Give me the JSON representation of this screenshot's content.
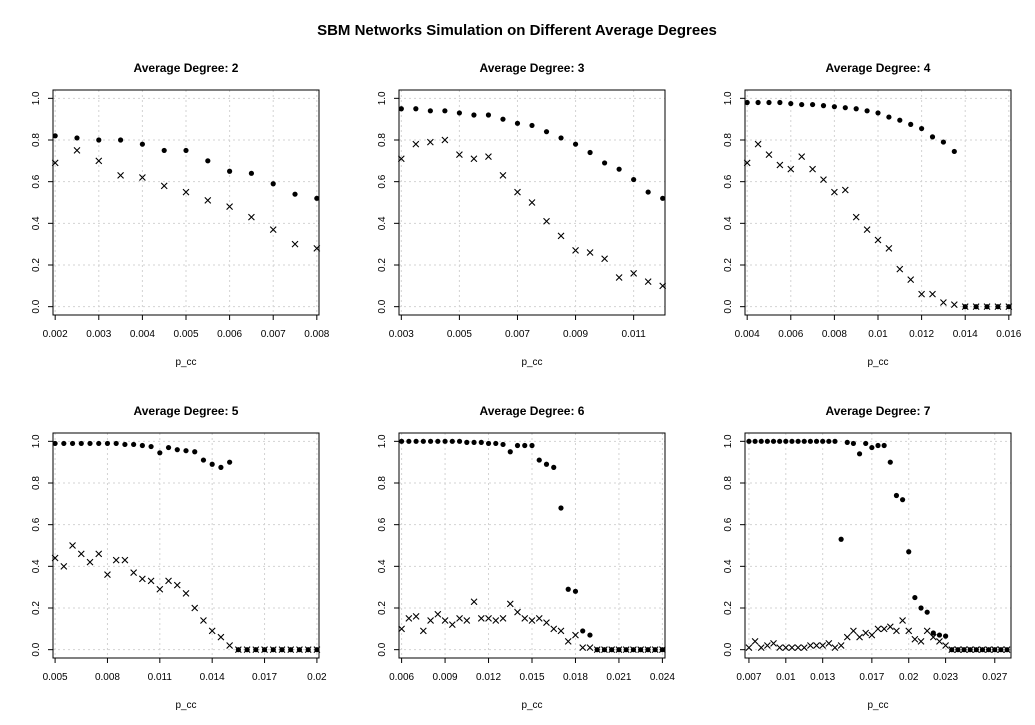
{
  "figure_title": "SBM Networks Simulation on Different Average Degrees",
  "chart_data": [
    {
      "type": "scatter",
      "title": "Average Degree:  2",
      "xlabel": "p_cc",
      "xlim": [
        0.00195,
        0.00805
      ],
      "ylim": [
        0,
        1
      ],
      "xticks": [
        0.002,
        0.003,
        0.004,
        0.005,
        0.006,
        0.007,
        0.008
      ],
      "xtick_labels": [
        "0.002",
        "0.003",
        "0.004",
        "0.005",
        "0.006",
        "0.007",
        "0.008"
      ],
      "yticks": [
        0,
        0.2,
        0.4,
        0.6,
        0.8,
        1.0
      ],
      "ytick_labels": [
        "0.0",
        "0.2",
        "0.4",
        "0.6",
        "0.8",
        "1.0"
      ],
      "series": [
        {
          "marker": "dot",
          "x": [
            0.002,
            0.0025,
            0.003,
            0.0035,
            0.004,
            0.0045,
            0.005,
            0.0055,
            0.006,
            0.0065,
            0.007,
            0.0075,
            0.008
          ],
          "y": [
            0.82,
            0.81,
            0.8,
            0.8,
            0.78,
            0.75,
            0.75,
            0.7,
            0.65,
            0.64,
            0.59,
            0.54,
            0.52
          ]
        },
        {
          "marker": "x",
          "x": [
            0.002,
            0.0025,
            0.003,
            0.0035,
            0.004,
            0.0045,
            0.005,
            0.0055,
            0.006,
            0.0065,
            0.007,
            0.0075,
            0.008
          ],
          "y": [
            0.69,
            0.75,
            0.7,
            0.63,
            0.62,
            0.58,
            0.55,
            0.51,
            0.48,
            0.43,
            0.37,
            0.3,
            0.28
          ]
        }
      ]
    },
    {
      "type": "scatter",
      "title": "Average Degree:  3",
      "xlabel": "p_cc",
      "xlim": [
        0.00292,
        0.01208
      ],
      "ylim": [
        0,
        1
      ],
      "xticks": [
        0.003,
        0.005,
        0.007,
        0.009,
        0.011
      ],
      "xtick_labels": [
        "0.003",
        "0.005",
        "0.007",
        "0.009",
        "0.011"
      ],
      "yticks": [
        0,
        0.2,
        0.4,
        0.6,
        0.8,
        1.0
      ],
      "ytick_labels": [
        "0.0",
        "0.2",
        "0.4",
        "0.6",
        "0.8",
        "1.0"
      ],
      "series": [
        {
          "marker": "dot",
          "x": [
            0.003,
            0.0035,
            0.004,
            0.0045,
            0.005,
            0.0055,
            0.006,
            0.0065,
            0.007,
            0.0075,
            0.008,
            0.0085,
            0.009,
            0.0095,
            0.01,
            0.0105,
            0.011,
            0.0115,
            0.012
          ],
          "y": [
            0.95,
            0.95,
            0.94,
            0.94,
            0.93,
            0.92,
            0.92,
            0.9,
            0.88,
            0.87,
            0.84,
            0.81,
            0.78,
            0.74,
            0.69,
            0.66,
            0.61,
            0.55,
            0.52
          ]
        },
        {
          "marker": "x",
          "x": [
            0.003,
            0.0035,
            0.004,
            0.0045,
            0.005,
            0.0055,
            0.006,
            0.0065,
            0.007,
            0.0075,
            0.008,
            0.0085,
            0.009,
            0.0095,
            0.01,
            0.0105,
            0.011,
            0.0115,
            0.012
          ],
          "y": [
            0.71,
            0.78,
            0.79,
            0.8,
            0.73,
            0.71,
            0.72,
            0.63,
            0.55,
            0.5,
            0.41,
            0.34,
            0.27,
            0.26,
            0.23,
            0.14,
            0.16,
            0.12,
            0.1
          ]
        }
      ]
    },
    {
      "type": "scatter",
      "title": "Average Degree:  4",
      "xlabel": "p_cc",
      "xlim": [
        0.0039,
        0.0161
      ],
      "ylim": [
        0,
        1
      ],
      "xticks": [
        0.004,
        0.006,
        0.008,
        0.01,
        0.012,
        0.014,
        0.016
      ],
      "xtick_labels": [
        "0.004",
        "0.006",
        "0.008",
        "0.01",
        "0.012",
        "0.014",
        "0.016"
      ],
      "yticks": [
        0,
        0.2,
        0.4,
        0.6,
        0.8,
        1.0
      ],
      "ytick_labels": [
        "0.0",
        "0.2",
        "0.4",
        "0.6",
        "0.8",
        "1.0"
      ],
      "series": [
        {
          "marker": "dot",
          "x": [
            0.004,
            0.0045,
            0.005,
            0.0055,
            0.006,
            0.0065,
            0.007,
            0.0075,
            0.008,
            0.0085,
            0.009,
            0.0095,
            0.01,
            0.0105,
            0.011,
            0.0115,
            0.012,
            0.0125,
            0.013,
            0.0135,
            0.014,
            0.0145,
            0.015,
            0.0155,
            0.016
          ],
          "y": [
            0.98,
            0.98,
            0.98,
            0.98,
            0.975,
            0.97,
            0.97,
            0.965,
            0.96,
            0.955,
            0.95,
            0.94,
            0.93,
            0.91,
            0.895,
            0.875,
            0.855,
            0.815,
            0.79,
            0.745,
            0,
            0,
            0,
            0,
            0
          ]
        },
        {
          "marker": "x",
          "x": [
            0.004,
            0.0045,
            0.005,
            0.0055,
            0.006,
            0.0065,
            0.007,
            0.0075,
            0.008,
            0.0085,
            0.009,
            0.0095,
            0.01,
            0.0105,
            0.011,
            0.0115,
            0.012,
            0.0125,
            0.013,
            0.0135,
            0.014,
            0.0145,
            0.015,
            0.0155,
            0.016
          ],
          "y": [
            0.69,
            0.78,
            0.73,
            0.68,
            0.66,
            0.72,
            0.66,
            0.61,
            0.55,
            0.56,
            0.43,
            0.37,
            0.32,
            0.28,
            0.18,
            0.13,
            0.06,
            0.06,
            0.02,
            0.01,
            0,
            0,
            0,
            0,
            0
          ]
        }
      ]
    },
    {
      "type": "scatter",
      "title": "Average Degree:  5",
      "xlabel": "p_cc",
      "xlim": [
        0.00488,
        0.02012
      ],
      "ylim": [
        0,
        1
      ],
      "xticks": [
        0.005,
        0.008,
        0.011,
        0.014,
        0.017,
        0.02
      ],
      "xtick_labels": [
        "0.005",
        "0.008",
        "0.011",
        "0.014",
        "0.017",
        "0.02"
      ],
      "yticks": [
        0,
        0.2,
        0.4,
        0.6,
        0.8,
        1.0
      ],
      "ytick_labels": [
        "0.0",
        "0.2",
        "0.4",
        "0.6",
        "0.8",
        "1.0"
      ],
      "series": [
        {
          "marker": "dot",
          "x": [
            0.005,
            0.0055,
            0.006,
            0.0065,
            0.007,
            0.0075,
            0.008,
            0.0085,
            0.009,
            0.0095,
            0.01,
            0.0105,
            0.011,
            0.0115,
            0.012,
            0.0125,
            0.013,
            0.0135,
            0.014,
            0.0145,
            0.015,
            0.0155,
            0.016,
            0.0165,
            0.017,
            0.0175,
            0.018,
            0.0185,
            0.019,
            0.0195,
            0.02
          ],
          "y": [
            0.99,
            0.99,
            0.99,
            0.99,
            0.99,
            0.99,
            0.99,
            0.99,
            0.985,
            0.985,
            0.98,
            0.975,
            0.945,
            0.97,
            0.96,
            0.955,
            0.95,
            0.91,
            0.89,
            0.875,
            0.9,
            0,
            0,
            0,
            0,
            0,
            0,
            0,
            0,
            0,
            0
          ]
        },
        {
          "marker": "x",
          "x": [
            0.005,
            0.0055,
            0.006,
            0.0065,
            0.007,
            0.0075,
            0.008,
            0.0085,
            0.009,
            0.0095,
            0.01,
            0.0105,
            0.011,
            0.0115,
            0.012,
            0.0125,
            0.013,
            0.0135,
            0.014,
            0.0145,
            0.015,
            0.0155,
            0.016,
            0.0165,
            0.017,
            0.0175,
            0.018,
            0.0185,
            0.019,
            0.0195,
            0.02
          ],
          "y": [
            0.44,
            0.4,
            0.5,
            0.46,
            0.42,
            0.46,
            0.36,
            0.43,
            0.43,
            0.37,
            0.34,
            0.33,
            0.29,
            0.33,
            0.31,
            0.27,
            0.2,
            0.14,
            0.09,
            0.06,
            0.02,
            0,
            0,
            0,
            0,
            0,
            0,
            0,
            0,
            0,
            0
          ]
        }
      ]
    },
    {
      "type": "scatter",
      "title": "Average Degree:  6",
      "xlabel": "p_cc",
      "xlim": [
        0.00582,
        0.02418
      ],
      "ylim": [
        0,
        1
      ],
      "xticks": [
        0.006,
        0.009,
        0.012,
        0.015,
        0.018,
        0.021,
        0.024
      ],
      "xtick_labels": [
        "0.006",
        "0.009",
        "0.012",
        "0.015",
        "0.018",
        "0.021",
        "0.024"
      ],
      "yticks": [
        0,
        0.2,
        0.4,
        0.6,
        0.8,
        1.0
      ],
      "ytick_labels": [
        "0.0",
        "0.2",
        "0.4",
        "0.6",
        "0.8",
        "1.0"
      ],
      "series": [
        {
          "marker": "dot",
          "x": [
            0.006,
            0.0065,
            0.007,
            0.0075,
            0.008,
            0.0085,
            0.009,
            0.0095,
            0.01,
            0.0105,
            0.011,
            0.0115,
            0.012,
            0.0125,
            0.013,
            0.0135,
            0.014,
            0.0145,
            0.015,
            0.0155,
            0.016,
            0.0165,
            0.017,
            0.0175,
            0.018,
            0.0185,
            0.019,
            0.0195,
            0.02,
            0.0205,
            0.021,
            0.0215,
            0.022,
            0.0225,
            0.023,
            0.0235,
            0.024
          ],
          "y": [
            1.0,
            1.0,
            1.0,
            1.0,
            1.0,
            1.0,
            1.0,
            1.0,
            1.0,
            0.995,
            0.995,
            0.995,
            0.99,
            0.99,
            0.985,
            0.95,
            0.98,
            0.98,
            0.98,
            0.91,
            0.89,
            0.875,
            0.68,
            0.29,
            0.28,
            0.09,
            0.07,
            0,
            0,
            0,
            0,
            0,
            0,
            0,
            0,
            0,
            0
          ]
        },
        {
          "marker": "x",
          "x": [
            0.006,
            0.0065,
            0.007,
            0.0075,
            0.008,
            0.0085,
            0.009,
            0.0095,
            0.01,
            0.0105,
            0.011,
            0.0115,
            0.012,
            0.0125,
            0.013,
            0.0135,
            0.014,
            0.0145,
            0.015,
            0.0155,
            0.016,
            0.0165,
            0.017,
            0.0175,
            0.018,
            0.0185,
            0.019,
            0.0195,
            0.02,
            0.0205,
            0.021,
            0.0215,
            0.022,
            0.0225,
            0.023,
            0.0235,
            0.024
          ],
          "y": [
            0.1,
            0.15,
            0.16,
            0.09,
            0.14,
            0.17,
            0.14,
            0.12,
            0.15,
            0.14,
            0.23,
            0.15,
            0.15,
            0.14,
            0.15,
            0.22,
            0.18,
            0.15,
            0.14,
            0.15,
            0.13,
            0.1,
            0.09,
            0.04,
            0.07,
            0.01,
            0.01,
            0,
            0,
            0,
            0,
            0,
            0,
            0,
            0,
            0,
            0
          ]
        }
      ]
    },
    {
      "type": "scatter",
      "title": "Average Degree:  7",
      "xlabel": "p_cc",
      "xlim": [
        0.00668,
        0.02832
      ],
      "ylim": [
        0,
        1
      ],
      "xticks": [
        0.007,
        0.01,
        0.013,
        0.017,
        0.02,
        0.023,
        0.027
      ],
      "xtick_labels": [
        "0.007",
        "0.01",
        "0.013",
        "0.017",
        "0.02",
        "0.023",
        "0.027"
      ],
      "yticks": [
        0,
        0.2,
        0.4,
        0.6,
        0.8,
        1.0
      ],
      "ytick_labels": [
        "0.0",
        "0.2",
        "0.4",
        "0.6",
        "0.8",
        "1.0"
      ],
      "series": [
        {
          "marker": "dot",
          "x": [
            0.007,
            0.0075,
            0.008,
            0.0085,
            0.009,
            0.0095,
            0.01,
            0.0105,
            0.011,
            0.0115,
            0.012,
            0.0125,
            0.013,
            0.0135,
            0.014,
            0.0145,
            0.015,
            0.0155,
            0.016,
            0.0165,
            0.017,
            0.0175,
            0.018,
            0.0185,
            0.019,
            0.0195,
            0.02,
            0.0205,
            0.021,
            0.0215,
            0.022,
            0.0225,
            0.023,
            0.0235,
            0.024,
            0.0245,
            0.025,
            0.0255,
            0.026,
            0.0265,
            0.027,
            0.0275,
            0.028
          ],
          "y": [
            1.0,
            1.0,
            1.0,
            1.0,
            1.0,
            1.0,
            1.0,
            1.0,
            1.0,
            1.0,
            1.0,
            1.0,
            1.0,
            1.0,
            1.0,
            0.53,
            0.995,
            0.99,
            0.94,
            0.99,
            0.97,
            0.98,
            0.98,
            0.9,
            0.74,
            0.72,
            0.47,
            0.25,
            0.2,
            0.18,
            0.08,
            0.07,
            0.065,
            0,
            0,
            0,
            0,
            0,
            0,
            0,
            0,
            0,
            0
          ]
        },
        {
          "marker": "x",
          "x": [
            0.007,
            0.0075,
            0.008,
            0.0085,
            0.009,
            0.0095,
            0.01,
            0.0105,
            0.011,
            0.0115,
            0.012,
            0.0125,
            0.013,
            0.0135,
            0.014,
            0.0145,
            0.015,
            0.0155,
            0.016,
            0.0165,
            0.017,
            0.0175,
            0.018,
            0.0185,
            0.019,
            0.0195,
            0.02,
            0.0205,
            0.021,
            0.0215,
            0.022,
            0.0225,
            0.023,
            0.0235,
            0.024,
            0.0245,
            0.025,
            0.0255,
            0.026,
            0.0265,
            0.027,
            0.0275,
            0.028
          ],
          "y": [
            0.01,
            0.04,
            0.01,
            0.02,
            0.03,
            0.01,
            0.01,
            0.01,
            0.01,
            0.01,
            0.02,
            0.02,
            0.02,
            0.03,
            0.01,
            0.02,
            0.06,
            0.09,
            0.06,
            0.08,
            0.07,
            0.1,
            0.1,
            0.11,
            0.09,
            0.14,
            0.09,
            0.05,
            0.04,
            0.09,
            0.06,
            0.04,
            0.02,
            0,
            0,
            0,
            0,
            0,
            0,
            0,
            0,
            0,
            0
          ]
        }
      ]
    }
  ]
}
